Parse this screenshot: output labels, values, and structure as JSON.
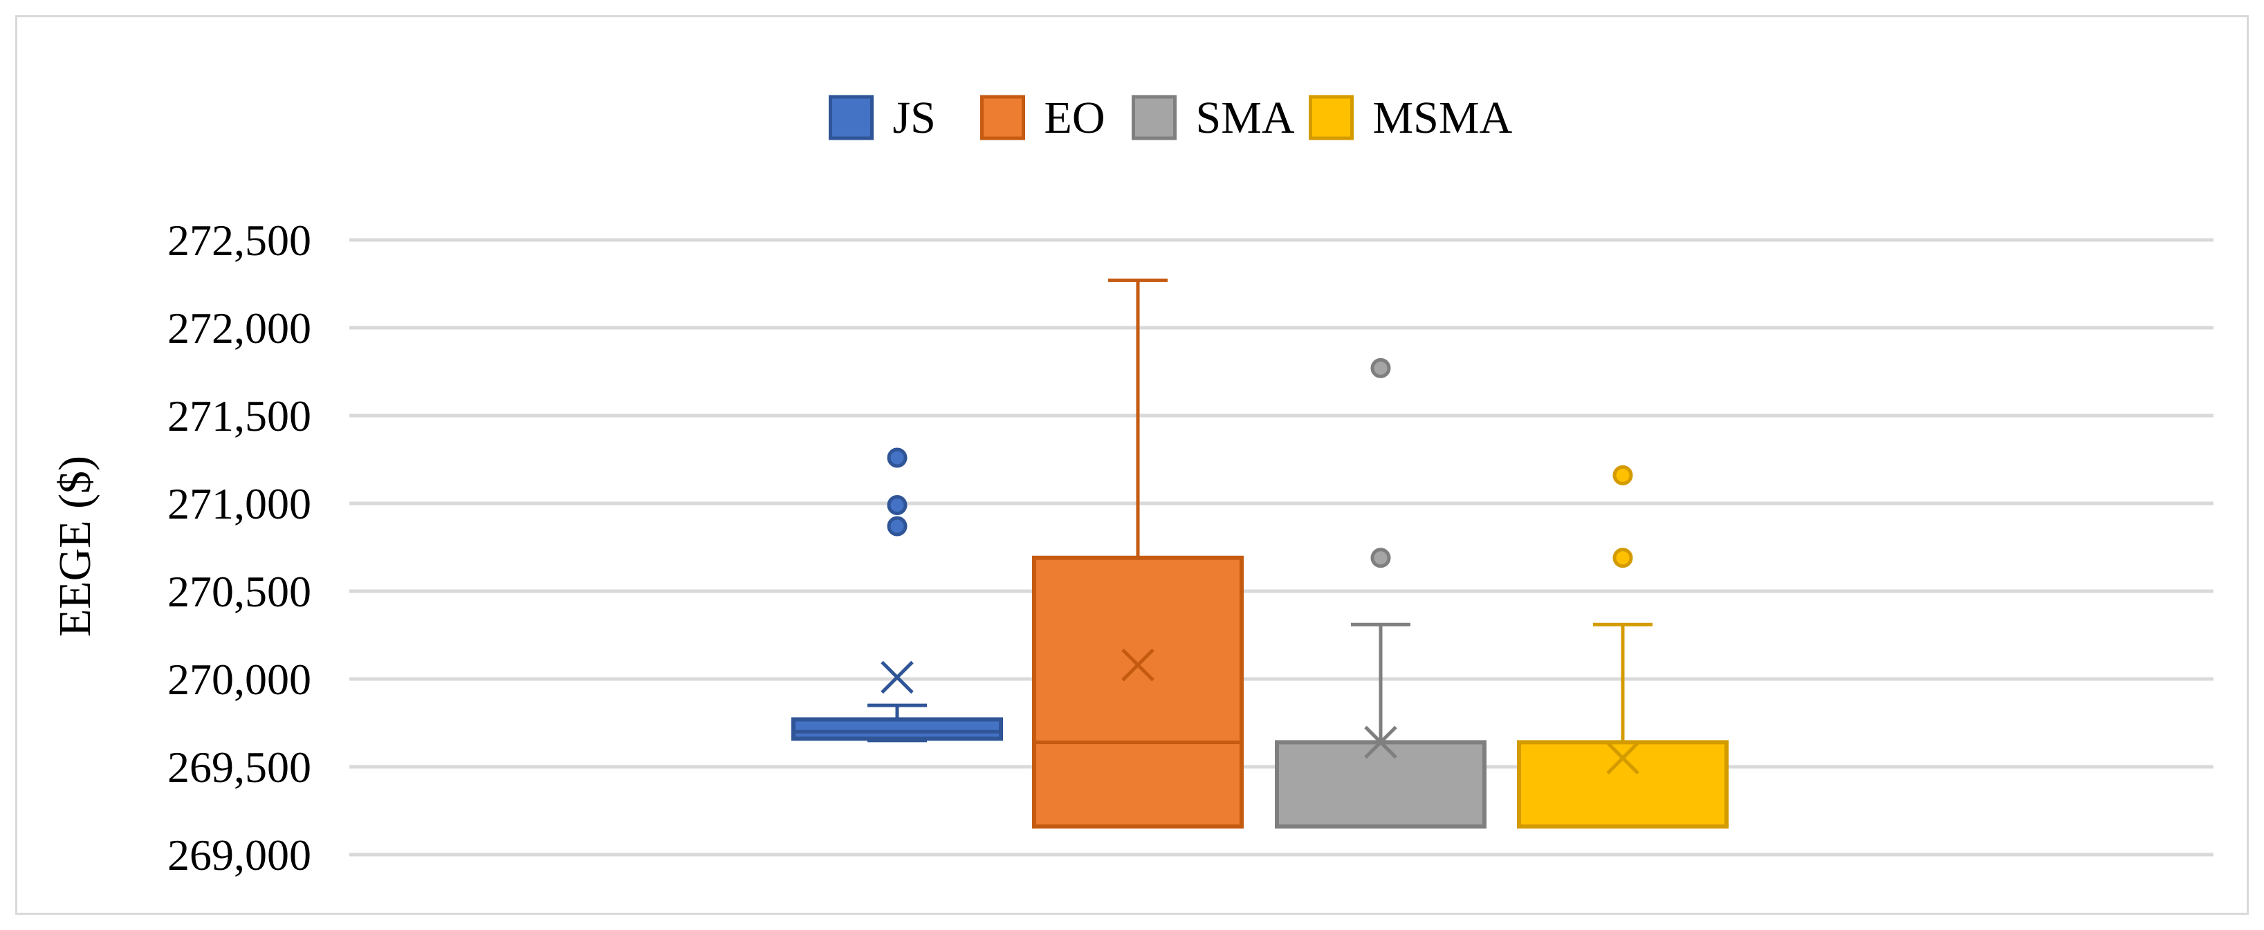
{
  "chart_data": {
    "type": "boxplot",
    "title": "",
    "xlabel": "",
    "ylabel": "EEGE ($)",
    "ylim": [
      269000,
      272500
    ],
    "yticks": [
      269000,
      269500,
      270000,
      270500,
      271000,
      271500,
      272000,
      272500
    ],
    "ytick_labels": [
      "269,000",
      "269,500",
      "270,000",
      "270,500",
      "271,000",
      "271,500",
      "272,000",
      "272,500"
    ],
    "grid": true,
    "legend_position": "top-center",
    "series": [
      {
        "name": "JS",
        "color": "#4472C4",
        "stroke": "#2F5597",
        "whisker_low": 269650,
        "q1": 269660,
        "median": 269700,
        "q3": 269770,
        "whisker_high": 269850,
        "mean": 270010,
        "outliers": [
          270870,
          270990,
          271260
        ]
      },
      {
        "name": "EO",
        "color": "#ED7D31",
        "stroke": "#C55A11",
        "whisker_low": 269160,
        "q1": 269160,
        "median": 269640,
        "q3": 270690,
        "whisker_high": 272270,
        "mean": 270080,
        "outliers": []
      },
      {
        "name": "SMA",
        "color": "#A5A5A5",
        "stroke": "#7F7F7F",
        "whisker_low": 269160,
        "q1": 269160,
        "median": 269640,
        "q3": 269640,
        "whisker_high": 270310,
        "mean": 269640,
        "outliers": [
          270690,
          271770
        ]
      },
      {
        "name": "MSMA",
        "color": "#FFC000",
        "stroke": "#D49B00",
        "whisker_low": 269160,
        "q1": 269160,
        "median": 269640,
        "q3": 269640,
        "whisker_high": 270310,
        "mean": 269550,
        "outliers": [
          270690,
          271160
        ]
      }
    ]
  }
}
